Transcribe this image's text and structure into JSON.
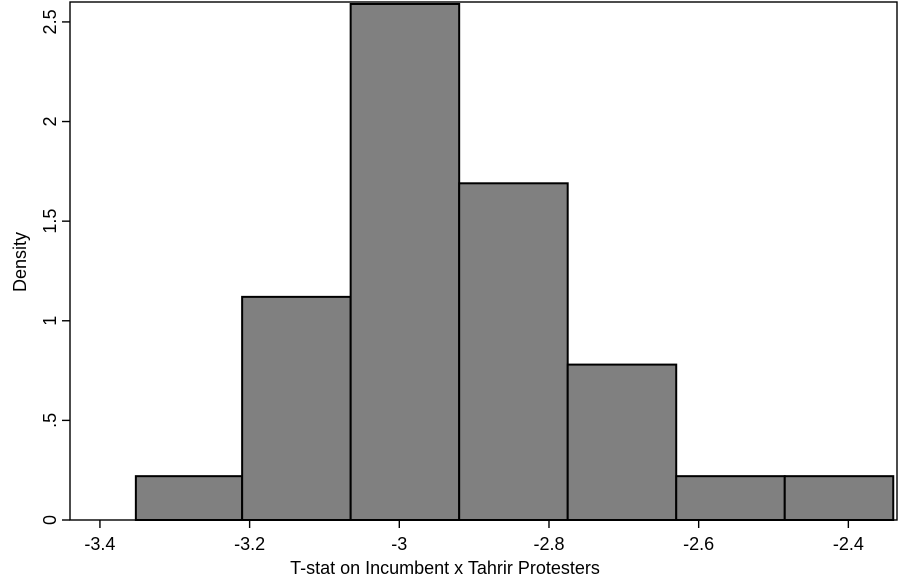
{
  "chart_data": {
    "type": "bar",
    "subtype": "histogram",
    "title": "",
    "xlabel": "T-stat on Incumbent x Tahrir Protesters",
    "ylabel": "Density",
    "xlim": [
      -3.44,
      -2.335
    ],
    "ylim": [
      0,
      2.6
    ],
    "grid": false,
    "legend": "none",
    "bar_color": "#808080",
    "bar_edge_color": "#000000",
    "bins": [
      {
        "x0": -3.352,
        "x1": -3.21,
        "density": 0.22
      },
      {
        "x0": -3.21,
        "x1": -3.065,
        "density": 1.12
      },
      {
        "x0": -3.065,
        "x1": -2.92,
        "density": 2.59
      },
      {
        "x0": -2.92,
        "x1": -2.775,
        "density": 1.69
      },
      {
        "x0": -2.775,
        "x1": -2.63,
        "density": 0.78
      },
      {
        "x0": -2.63,
        "x1": -2.485,
        "density": 0.22
      },
      {
        "x0": -2.485,
        "x1": -2.34,
        "density": 0.22
      }
    ],
    "x_ticks": [
      {
        "value": -3.4,
        "label": "-3.4"
      },
      {
        "value": -3.2,
        "label": "-3.2"
      },
      {
        "value": -3.0,
        "label": "-3"
      },
      {
        "value": -2.8,
        "label": "-2.8"
      },
      {
        "value": -2.6,
        "label": "-2.6"
      },
      {
        "value": -2.4,
        "label": "-2.4"
      }
    ],
    "y_ticks": [
      {
        "value": 0,
        "label": "0"
      },
      {
        "value": 0.5,
        "label": ".5"
      },
      {
        "value": 1,
        "label": "1"
      },
      {
        "value": 1.5,
        "label": "1.5"
      },
      {
        "value": 2,
        "label": "2"
      },
      {
        "value": 2.5,
        "label": "2.5"
      }
    ]
  }
}
